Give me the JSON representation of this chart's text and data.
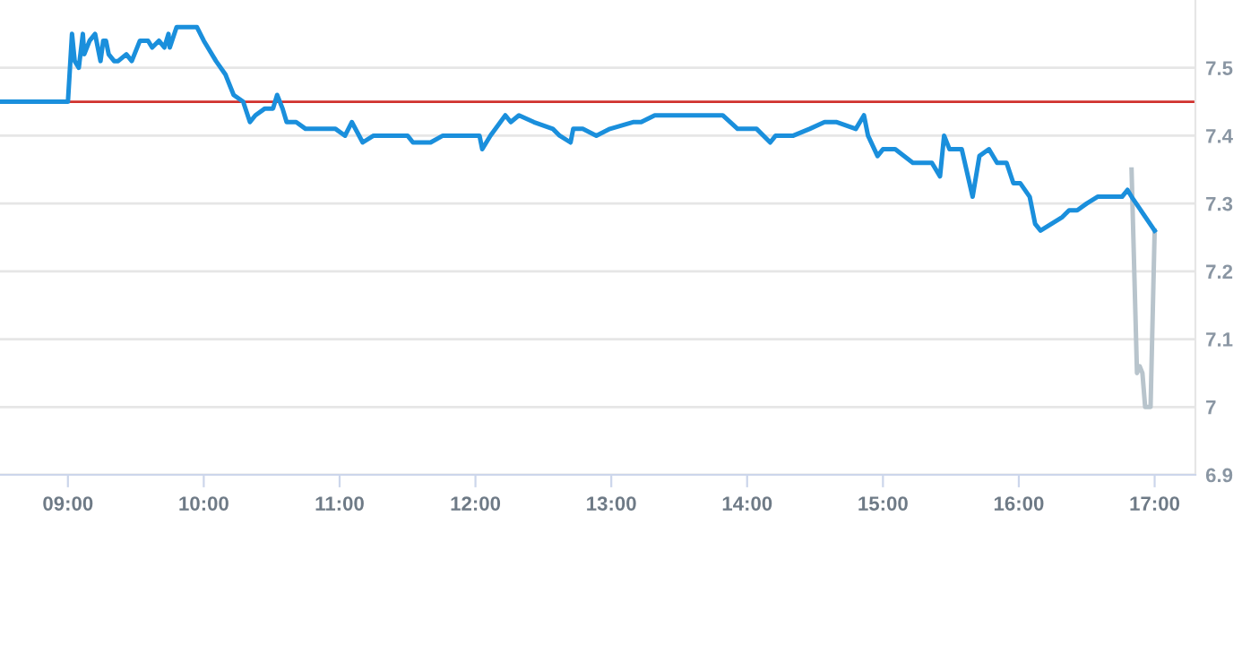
{
  "chart_data": {
    "type": "line",
    "xlim": [
      8.5,
      17.3
    ],
    "ylim": [
      6.9,
      7.6
    ],
    "xticks": [
      {
        "value": 9,
        "label": "09:00"
      },
      {
        "value": 10,
        "label": "10:00"
      },
      {
        "value": 11,
        "label": "11:00"
      },
      {
        "value": 12,
        "label": "12:00"
      },
      {
        "value": 13,
        "label": "13:00"
      },
      {
        "value": 14,
        "label": "14:00"
      },
      {
        "value": 15,
        "label": "15:00"
      },
      {
        "value": 16,
        "label": "16:00"
      },
      {
        "value": 17,
        "label": "17:00"
      }
    ],
    "yticks": [
      6.9,
      7,
      7.1,
      7.2,
      7.3,
      7.4,
      7.5
    ],
    "grid": "y",
    "marker": "none",
    "line_style": "solid",
    "ref_lines": [
      {
        "axis": "y",
        "value": 7.45,
        "color": "#d0312d"
      }
    ],
    "series": [
      {
        "color": "#b8c4cc",
        "x": [
          16.83,
          16.87,
          16.89,
          16.91,
          16.93,
          16.97,
          17.0
        ],
        "values": [
          7.35,
          7.05,
          7.06,
          7.05,
          7.0,
          7.0,
          7.26
        ]
      },
      {
        "color": "#1a8fdc",
        "x": [
          8.51,
          9.0,
          9.03,
          9.05,
          9.08,
          9.11,
          9.12,
          9.16,
          9.2,
          9.21,
          9.24,
          9.26,
          9.28,
          9.3,
          9.34,
          9.37,
          9.43,
          9.47,
          9.53,
          9.59,
          9.62,
          9.67,
          9.71,
          9.74,
          9.75,
          9.8,
          9.87,
          9.92,
          9.95,
          10.0,
          10.09,
          10.16,
          10.22,
          10.29,
          10.34,
          10.38,
          10.45,
          10.51,
          10.54,
          10.58,
          10.61,
          10.68,
          10.75,
          10.79,
          10.86,
          10.97,
          11.04,
          11.09,
          11.17,
          11.25,
          11.37,
          11.5,
          11.54,
          11.58,
          11.63,
          11.67,
          11.76,
          12.03,
          12.05,
          12.11,
          12.22,
          12.26,
          12.32,
          12.43,
          12.57,
          12.62,
          12.7,
          12.72,
          12.79,
          12.89,
          12.99,
          13.16,
          13.22,
          13.32,
          13.38,
          13.47,
          13.74,
          13.82,
          13.93,
          14.07,
          14.17,
          14.21,
          14.34,
          14.46,
          14.57,
          14.66,
          14.8,
          14.86,
          14.89,
          14.96,
          15.0,
          15.09,
          15.22,
          15.36,
          15.42,
          15.45,
          15.49,
          15.58,
          15.66,
          15.71,
          15.78,
          15.84,
          15.91,
          15.96,
          16.01,
          16.08,
          16.12,
          16.16,
          16.24,
          16.32,
          16.37,
          16.43,
          16.5,
          16.58,
          16.67,
          16.76,
          16.8,
          16.83,
          17.0
        ],
        "values": [
          7.45,
          7.45,
          7.55,
          7.51,
          7.5,
          7.55,
          7.52,
          7.54,
          7.55,
          7.54,
          7.51,
          7.54,
          7.54,
          7.52,
          7.51,
          7.51,
          7.52,
          7.51,
          7.54,
          7.54,
          7.53,
          7.54,
          7.53,
          7.55,
          7.53,
          7.56,
          7.56,
          7.56,
          7.56,
          7.54,
          7.51,
          7.49,
          7.46,
          7.45,
          7.42,
          7.43,
          7.44,
          7.44,
          7.46,
          7.44,
          7.42,
          7.42,
          7.41,
          7.41,
          7.41,
          7.41,
          7.4,
          7.42,
          7.39,
          7.4,
          7.4,
          7.4,
          7.39,
          7.39,
          7.39,
          7.39,
          7.4,
          7.4,
          7.38,
          7.4,
          7.43,
          7.42,
          7.43,
          7.42,
          7.41,
          7.4,
          7.39,
          7.41,
          7.41,
          7.4,
          7.41,
          7.42,
          7.42,
          7.43,
          7.43,
          7.43,
          7.43,
          7.43,
          7.41,
          7.41,
          7.39,
          7.4,
          7.4,
          7.41,
          7.42,
          7.42,
          7.41,
          7.43,
          7.4,
          7.37,
          7.38,
          7.38,
          7.36,
          7.36,
          7.34,
          7.4,
          7.38,
          7.38,
          7.31,
          7.37,
          7.38,
          7.36,
          7.36,
          7.33,
          7.33,
          7.31,
          7.27,
          7.26,
          7.27,
          7.28,
          7.29,
          7.29,
          7.3,
          7.31,
          7.31,
          7.31,
          7.32,
          7.31,
          7.26
        ]
      }
    ]
  }
}
